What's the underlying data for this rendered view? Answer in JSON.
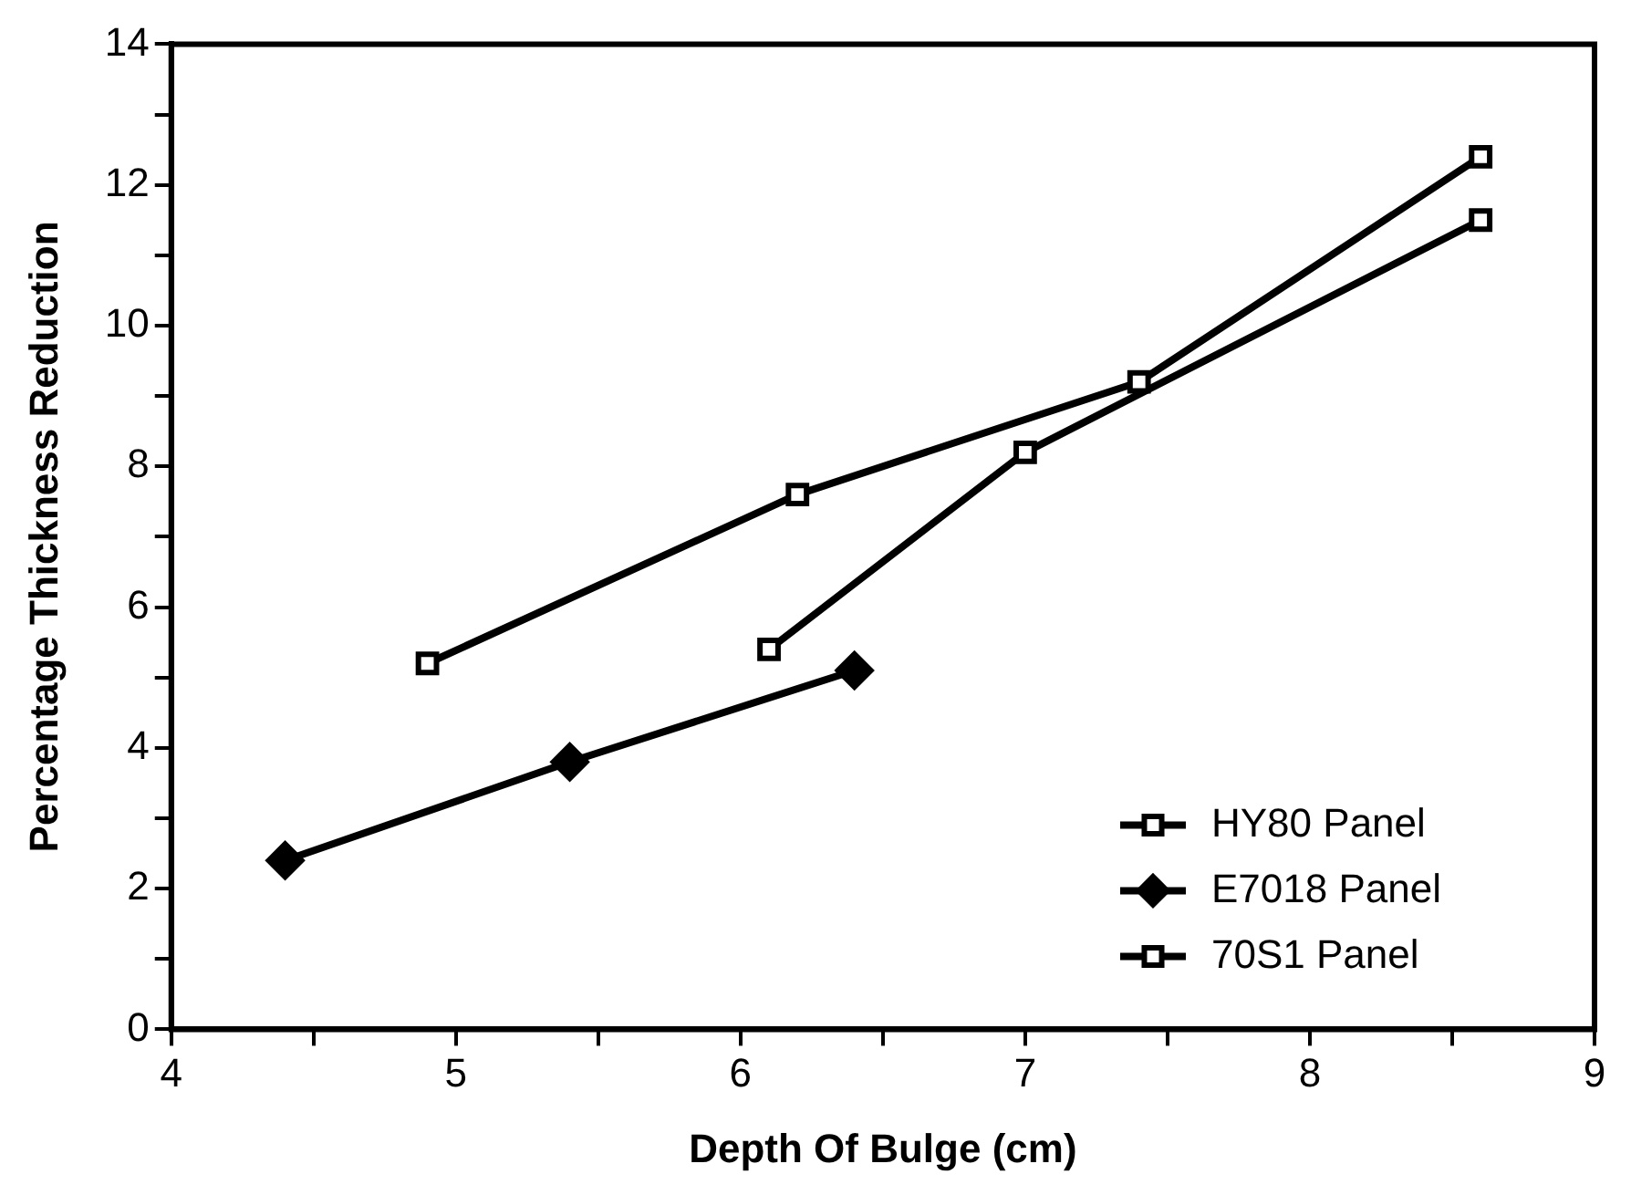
{
  "chart_data": {
    "type": "line",
    "xlabel": "Depth Of Bulge (cm)",
    "ylabel": "Percentage Thickness Reduction",
    "xlim": [
      4,
      9
    ],
    "xticks": [
      4,
      {
        "value": 4.5,
        "label": null
      },
      5,
      {
        "value": 5.5,
        "label": null
      },
      6,
      {
        "value": 6.5,
        "label": null
      },
      7,
      {
        "value": 7.5,
        "label": null
      },
      8,
      {
        "value": 8.5,
        "label": null
      },
      9
    ],
    "ylim": [
      0,
      14
    ],
    "yticks": [
      0,
      {
        "value": 1,
        "label": null
      },
      2,
      {
        "value": 3,
        "label": null
      },
      4,
      {
        "value": 5,
        "label": null
      },
      6,
      {
        "value": 7,
        "label": null
      },
      8,
      {
        "value": 9,
        "label": null
      },
      10,
      {
        "value": 11,
        "label": null
      },
      12,
      {
        "value": 13,
        "label": null
      },
      14
    ],
    "grid": false,
    "legend": "bottom right",
    "line_style": "solid",
    "series": [
      {
        "name": "HY80 Panel",
        "color": "#000000",
        "marker": "square",
        "x": [
          4.9,
          6.2,
          7.4,
          8.6
        ],
        "values": [
          5.2,
          7.6,
          9.2,
          12.4
        ]
      },
      {
        "name": "E7018 Panel",
        "color": "#000000",
        "marker": "diamond",
        "x": [
          4.4,
          5.4,
          6.4
        ],
        "values": [
          2.4,
          3.8,
          5.1
        ]
      },
      {
        "name": "70S1 Panel",
        "color": "#000000",
        "marker": "square",
        "x": [
          6.1,
          7.0,
          8.6
        ],
        "values": [
          5.4,
          8.2,
          11.5
        ]
      }
    ]
  }
}
